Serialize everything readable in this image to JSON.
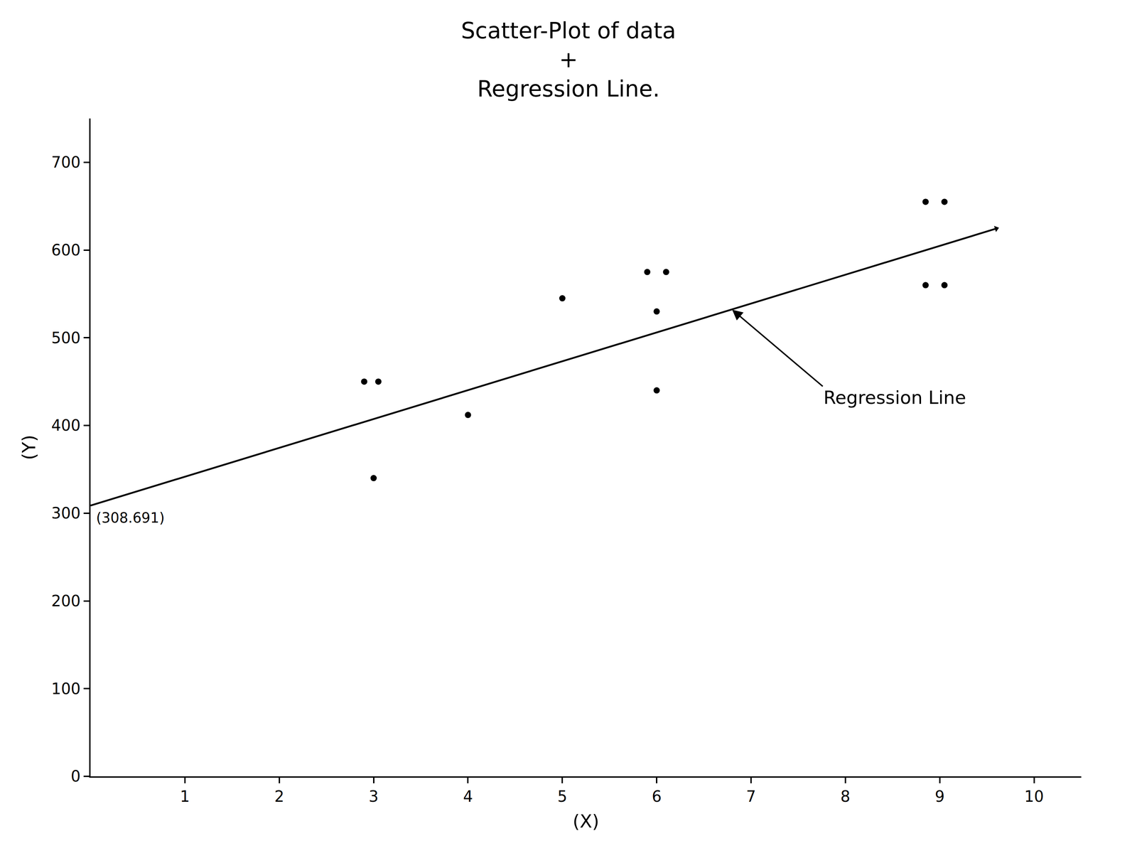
{
  "chart_data": {
    "type": "scatter",
    "title": [
      "Scatter-Plot of data",
      "+",
      "Regression Line."
    ],
    "x_label": "(X)",
    "y_label": "(Y)",
    "x": [
      2.9,
      3.05,
      3.0,
      4.0,
      5.0,
      5.9,
      6.1,
      6.0,
      6.0,
      8.85,
      9.05,
      8.85,
      9.05
    ],
    "values": [
      450,
      450,
      340,
      412,
      545,
      575,
      575,
      530,
      440,
      655,
      655,
      560,
      560
    ],
    "color": "#000000",
    "marker": "circle",
    "regression_line": {
      "x": [
        0,
        9.6
      ],
      "values": [
        308.691,
        624.5
      ],
      "color": "#000000",
      "line_style": "solid"
    },
    "annotations": [
      {
        "text": "(308.691)",
        "x": 0,
        "y": 308.691
      },
      {
        "text": "Regression Line",
        "x": 6.8,
        "y": 532
      }
    ],
    "xlim": [
      0,
      10.5
    ],
    "ylim": [
      0,
      750
    ],
    "xticks": [
      1,
      2,
      3,
      4,
      5,
      6,
      7,
      8,
      9,
      10
    ],
    "yticks": [
      0,
      100,
      200,
      300,
      400,
      500,
      600,
      700
    ],
    "grid": false
  }
}
